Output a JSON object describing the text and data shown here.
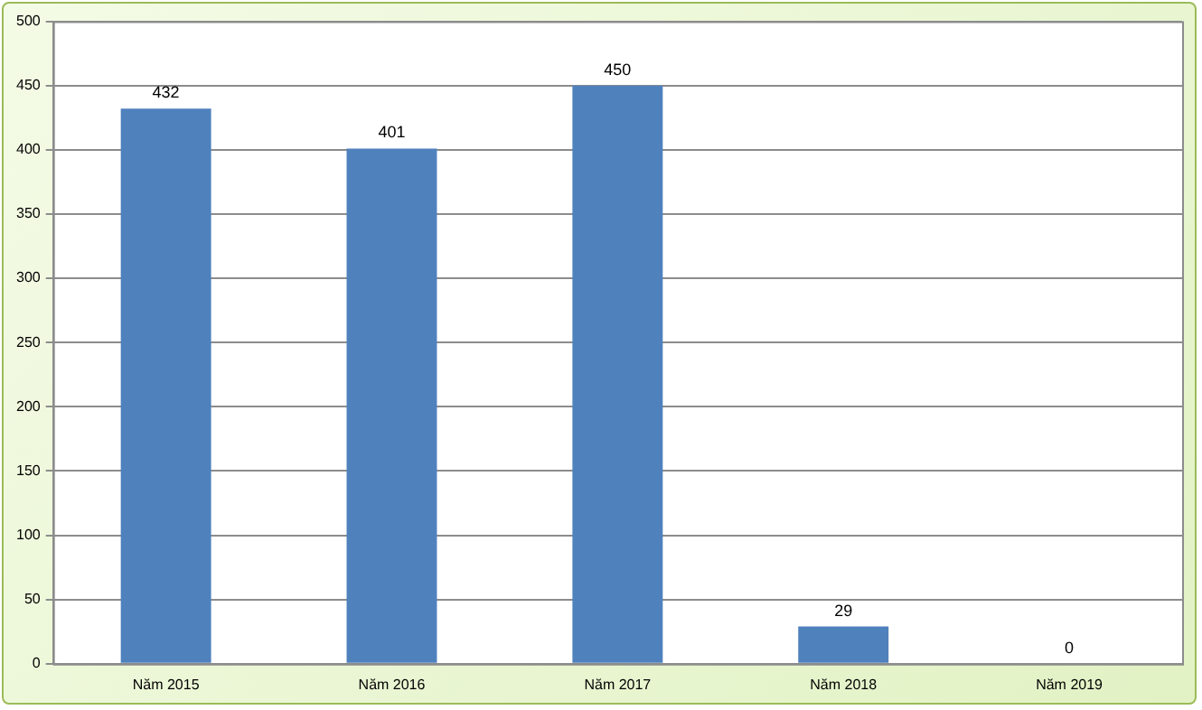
{
  "chart_data": {
    "type": "bar",
    "categories": [
      "Năm 2015",
      "Năm 2016",
      "Năm 2017",
      "Năm 2018",
      "Năm 2019"
    ],
    "values": [
      432,
      401,
      450,
      29,
      0
    ],
    "color": "#4f81bd",
    "ylim": [
      0,
      500
    ],
    "yticks": [
      0,
      50,
      100,
      150,
      200,
      250,
      300,
      350,
      400,
      450,
      500
    ],
    "grid": "y",
    "data_labels": true
  }
}
